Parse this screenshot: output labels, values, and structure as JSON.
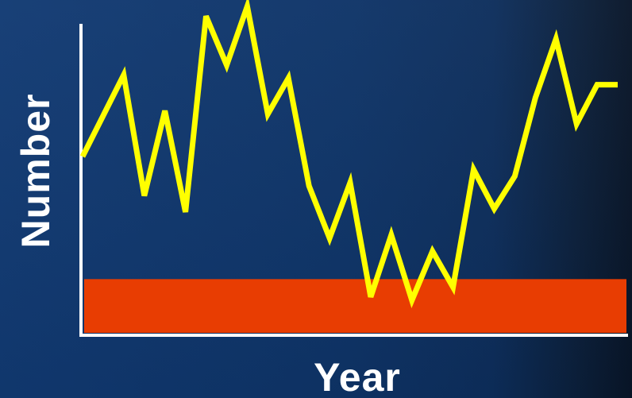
{
  "chart_data": {
    "type": "line",
    "title": "",
    "xlabel": "Year",
    "ylabel": "Number",
    "grid": false,
    "legend": "none",
    "xlim": [
      0,
      26
    ],
    "ylim": [
      0,
      100
    ],
    "band": {
      "from": 0,
      "to": 15,
      "color": "#e83d02"
    },
    "series": [
      {
        "color": "#ffff00",
        "x": [
          0,
          2,
          3,
          4,
          5,
          6,
          7,
          8,
          9,
          10,
          11,
          12,
          13,
          14,
          15,
          16,
          17,
          18,
          19,
          20,
          21,
          22,
          23,
          24,
          25,
          26
        ],
        "values": [
          54,
          79,
          42,
          68,
          37,
          97,
          82,
          100,
          67,
          78,
          45,
          29,
          46,
          11,
          30,
          10,
          25,
          14,
          50,
          38,
          48,
          72,
          90,
          64,
          76,
          76
        ]
      }
    ]
  },
  "colors": {
    "background": "#0e3468",
    "axis": "#ffffff",
    "line": "#ffff00",
    "band": "#e83d02",
    "label": "#ffffff"
  }
}
